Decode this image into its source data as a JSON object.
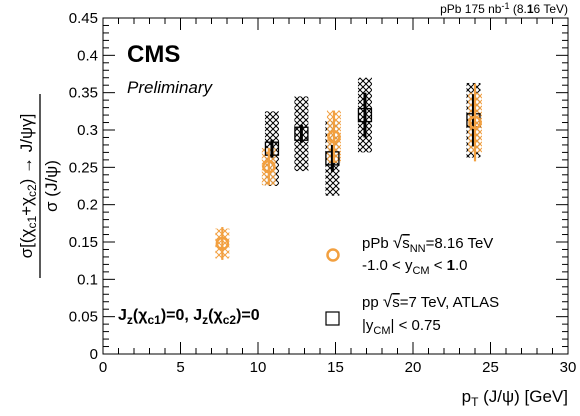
{
  "chart_data": {
    "type": "scatter",
    "corner_label": "pPb 175 nb⁻¹ (8.16 TeV)",
    "experiment": "CMS",
    "status": "Preliminary",
    "annotation": "Jz(χc1)=0, Jz(χc2)=0",
    "xlabel": "pT (J/ψ) [GeV]",
    "ylabel": "σ[(χc1+χc2) → J/ψγ] / σ (J/ψ)",
    "xlim": [
      0,
      30
    ],
    "ylim": [
      0,
      0.45
    ],
    "x_ticks": [
      "0",
      "5",
      "10",
      "15",
      "20",
      "25",
      "30"
    ],
    "y_ticks": [
      "0",
      "0.05",
      "0.1",
      "0.15",
      "0.2",
      "0.25",
      "0.3",
      "0.35",
      "0.4",
      "0.45"
    ],
    "legend_position": "bottom-right",
    "series": [
      {
        "name": "pPb √sNN=8.16 TeV, -1.0 < yCM < 1.0",
        "legend_line1": "pPb √sNN=8.16 TeV",
        "legend_line2": "-1.0 < yCM < 1.0",
        "marker": "open-circle",
        "color": "#f2a040",
        "points": [
          {
            "x": 7.7,
            "y": 0.148,
            "stat": 0.022,
            "syst": 0.02
          },
          {
            "x": 10.7,
            "y": 0.251,
            "stat": 0.025,
            "syst": 0.025
          },
          {
            "x": 14.9,
            "y": 0.291,
            "stat": 0.035,
            "syst": 0.035
          },
          {
            "x": 24.0,
            "y": 0.31,
            "stat": 0.052,
            "syst": 0.04
          }
        ]
      },
      {
        "name": "pp √s=7 TeV, ATLAS, |yCM| < 0.75",
        "legend_line1": "pp √s=7 TeV, ATLAS",
        "legend_line2": "|yCM| < 0.75",
        "marker": "open-square",
        "color": "#000000",
        "points": [
          {
            "x": 10.9,
            "y": 0.275,
            "stat": 0.012,
            "syst": 0.05
          },
          {
            "x": 12.8,
            "y": 0.295,
            "stat": 0.012,
            "syst": 0.05
          },
          {
            "x": 14.8,
            "y": 0.262,
            "stat": 0.018,
            "syst": 0.05
          },
          {
            "x": 16.9,
            "y": 0.32,
            "stat": 0.03,
            "syst": 0.05
          },
          {
            "x": 23.9,
            "y": 0.313,
            "stat": 0.035,
            "syst": 0.05
          }
        ]
      }
    ]
  }
}
